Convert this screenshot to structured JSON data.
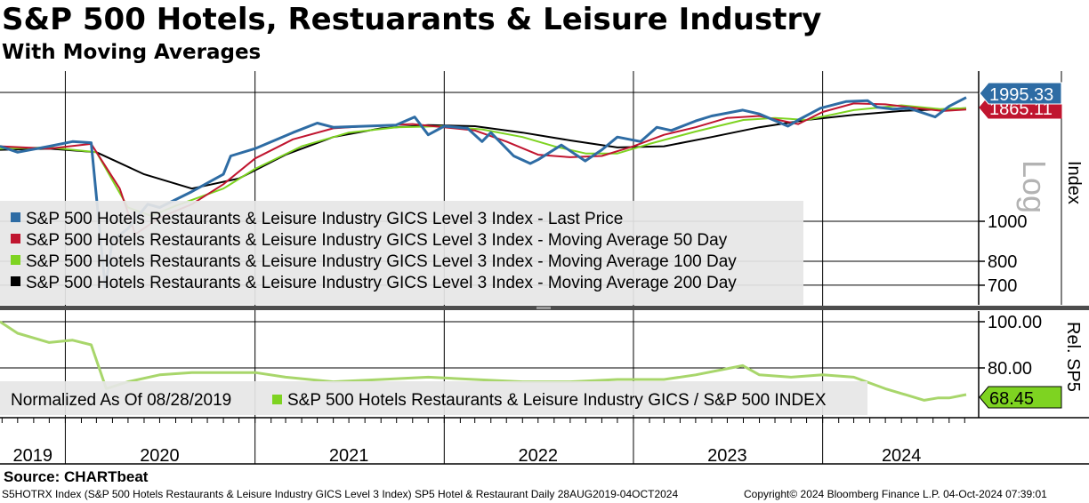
{
  "title": "S&P 500 Hotels, Restuarants & Leisure Industry",
  "subtitle": "With Moving Averages",
  "source": "Source: CHARTbeat",
  "footer_left": "S5HOTRX Index (S&P 500 Hotels Restaurants & Leisure Industry GICS Level 3 Index) SP5 Hotel & Restaurant  Daily 28AUG2019-04OCT2024",
  "footer_right": "Copyright© 2024 Bloomberg Finance L.P.   04-Oct-2024 07:39:01",
  "colors": {
    "last_price": "#2e6ca4",
    "ma50": "#c0152f",
    "ma100": "#7ed321",
    "ma200": "#000000",
    "relative": "#a8d66b",
    "relative_tag": "#7ed321"
  },
  "chart_data": [
    {
      "type": "line",
      "panel": "upper",
      "ylabel": "Index",
      "scale_label": "Log",
      "yscale": "log",
      "yticks": [
        "1000",
        "800",
        "700"
      ],
      "ylim": [
        600,
        2100
      ],
      "x_categories": [
        "2019",
        "2020",
        "2021",
        "2022",
        "2023",
        "2024"
      ],
      "xlim": [
        "2019-08-28",
        "2024-10-04"
      ],
      "last_value_labels": [
        "1995.33",
        "1865.11"
      ],
      "grid": true,
      "legend_position": "bottom-left",
      "series": [
        {
          "name": "S&P 500 Hotels Restaurants & Leisure Industry GICS Level 3 Index - Last Price",
          "x": [
            "2019-08-28",
            "2019-10-01",
            "2019-12-01",
            "2020-01-15",
            "2020-02-20",
            "2020-03-18",
            "2020-04-01",
            "2020-05-01",
            "2020-06-08",
            "2020-07-01",
            "2020-09-01",
            "2020-11-01",
            "2020-11-15",
            "2021-01-01",
            "2021-03-15",
            "2021-05-01",
            "2021-06-01",
            "2021-08-01",
            "2021-09-30",
            "2021-11-05",
            "2021-12-01",
            "2022-01-01",
            "2022-02-15",
            "2022-03-15",
            "2022-04-01",
            "2022-05-15",
            "2022-06-16",
            "2022-07-01",
            "2022-08-15",
            "2022-09-30",
            "2022-11-01",
            "2022-12-01",
            "2023-01-15",
            "2023-02-15",
            "2023-03-15",
            "2023-05-01",
            "2023-06-01",
            "2023-07-31",
            "2023-09-01",
            "2023-10-26",
            "2023-11-15",
            "2023-12-28",
            "2024-02-15",
            "2024-03-28",
            "2024-04-15",
            "2024-05-15",
            "2024-06-15",
            "2024-08-05",
            "2024-09-01",
            "2024-10-04"
          ],
          "y": [
            1520,
            1470,
            1520,
            1560,
            1550,
            690,
            900,
            960,
            1100,
            1080,
            1180,
            1300,
            1440,
            1500,
            1640,
            1730,
            1690,
            1700,
            1710,
            1790,
            1620,
            1700,
            1680,
            1560,
            1640,
            1440,
            1380,
            1410,
            1530,
            1400,
            1490,
            1600,
            1560,
            1690,
            1660,
            1750,
            1800,
            1860,
            1820,
            1700,
            1760,
            1880,
            1950,
            1960,
            1890,
            1870,
            1880,
            1790,
            1900,
            1995.33
          ]
        },
        {
          "name": "S&P 500 Hotels Restaurants & Leisure Industry GICS Level 3 Index - Moving Average 50 Day",
          "x": [
            "2019-08-28",
            "2019-12-01",
            "2020-02-20",
            "2020-04-15",
            "2020-05-15",
            "2020-07-01",
            "2020-09-01",
            "2020-11-01",
            "2021-01-01",
            "2021-03-15",
            "2021-06-01",
            "2021-08-01",
            "2021-11-01",
            "2022-01-01",
            "2022-03-01",
            "2022-05-01",
            "2022-07-01",
            "2022-09-01",
            "2022-11-01",
            "2023-01-01",
            "2023-03-01",
            "2023-05-01",
            "2023-07-01",
            "2023-09-01",
            "2023-11-15",
            "2024-01-01",
            "2024-03-01",
            "2024-05-01",
            "2024-07-01",
            "2024-08-20",
            "2024-10-04"
          ],
          "y": [
            1520,
            1500,
            1540,
            1200,
            930,
            1020,
            1100,
            1230,
            1420,
            1580,
            1680,
            1700,
            1720,
            1690,
            1660,
            1560,
            1450,
            1430,
            1440,
            1520,
            1620,
            1690,
            1780,
            1800,
            1720,
            1840,
            1930,
            1920,
            1880,
            1850,
            1865.11
          ]
        },
        {
          "name": "S&P 500 Hotels Restaurants & Leisure Industry GICS Level 3 Index - Moving Average 100 Day",
          "x": [
            "2019-08-28",
            "2019-12-01",
            "2020-03-01",
            "2020-05-01",
            "2020-06-15",
            "2020-08-01",
            "2020-11-01",
            "2021-01-01",
            "2021-04-01",
            "2021-07-01",
            "2021-10-01",
            "2022-01-01",
            "2022-03-15",
            "2022-06-01",
            "2022-08-01",
            "2022-10-01",
            "2022-12-01",
            "2023-02-01",
            "2023-05-01",
            "2023-08-01",
            "2023-10-01",
            "2023-12-01",
            "2024-03-01",
            "2024-06-01",
            "2024-08-15",
            "2024-10-04"
          ],
          "y": [
            1500,
            1510,
            1470,
            1080,
            1030,
            1090,
            1200,
            1340,
            1520,
            1640,
            1690,
            1700,
            1670,
            1600,
            1520,
            1460,
            1460,
            1540,
            1650,
            1760,
            1780,
            1760,
            1860,
            1910,
            1870,
            1880
          ]
        },
        {
          "name": "S&P 500 Hotels Restaurants & Leisure Industry GICS Level 3 Index - Moving Average 200 Day",
          "x": [
            "2019-08-28",
            "2019-12-01",
            "2020-03-01",
            "2020-06-01",
            "2020-09-01",
            "2020-12-01",
            "2021-03-01",
            "2021-06-01",
            "2021-09-01",
            "2021-12-01",
            "2022-03-01",
            "2022-06-01",
            "2022-09-01",
            "2022-12-01",
            "2023-03-01",
            "2023-06-01",
            "2023-09-01",
            "2023-12-01",
            "2024-03-01",
            "2024-06-01",
            "2024-10-04"
          ],
          "y": [
            1490,
            1500,
            1470,
            1300,
            1200,
            1270,
            1450,
            1600,
            1680,
            1710,
            1700,
            1640,
            1570,
            1510,
            1520,
            1600,
            1690,
            1760,
            1810,
            1850,
            1880
          ]
        }
      ]
    },
    {
      "type": "line",
      "panel": "lower",
      "ylabel": "Rel. SP5",
      "yticks": [
        "100.00",
        "80.00"
      ],
      "ylim": [
        62,
        103
      ],
      "last_value_label": "68.45",
      "legend_prefix": "Normalized As Of 08/28/2019",
      "legend_position": "bottom-left",
      "series": [
        {
          "name": "S&P 500 Hotels Restaurants & Leisure Industry GICS / S&P 500 INDEX",
          "x": [
            "2019-08-28",
            "2019-10-01",
            "2019-12-01",
            "2020-01-15",
            "2020-02-20",
            "2020-03-20",
            "2020-05-01",
            "2020-07-01",
            "2020-09-01",
            "2020-11-01",
            "2021-01-01",
            "2021-03-01",
            "2021-06-01",
            "2021-09-01",
            "2021-12-01",
            "2022-03-01",
            "2022-06-01",
            "2022-09-01",
            "2022-12-01",
            "2023-03-01",
            "2023-05-01",
            "2023-07-31",
            "2023-09-01",
            "2023-11-01",
            "2024-01-01",
            "2024-03-01",
            "2024-05-01",
            "2024-07-15",
            "2024-08-10",
            "2024-09-01",
            "2024-10-04"
          ],
          "y": [
            100,
            95,
            91,
            92,
            90,
            71,
            74,
            77,
            78,
            78,
            78,
            76,
            74,
            75,
            76,
            75,
            74,
            74,
            75,
            75,
            77,
            81,
            77,
            76,
            77,
            76,
            71,
            66,
            67,
            67,
            68.45
          ]
        }
      ]
    }
  ]
}
